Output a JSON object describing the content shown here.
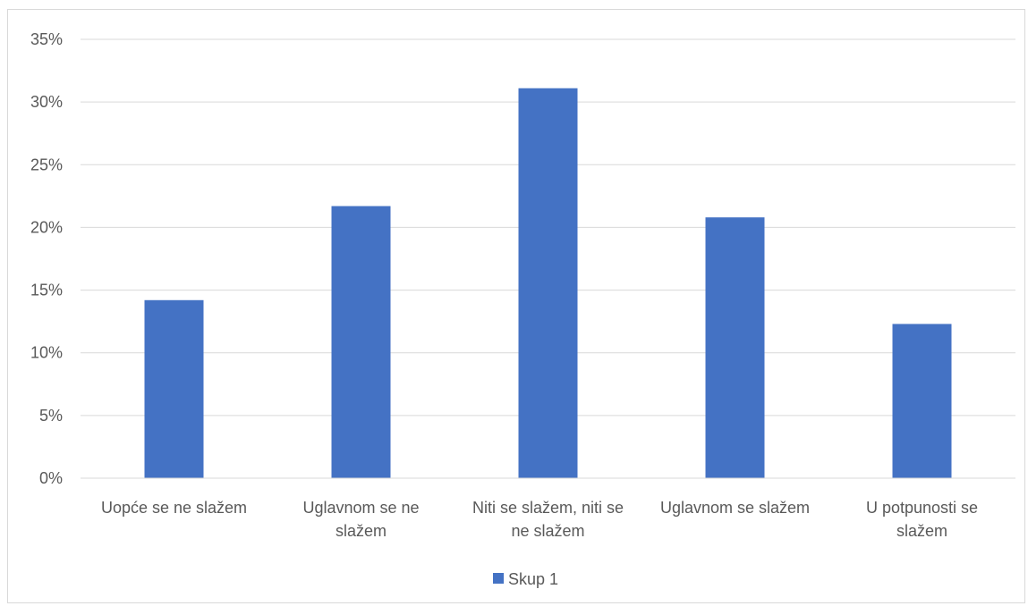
{
  "chart_data": {
    "type": "bar",
    "categories": [
      [
        "Uopće se ne slažem"
      ],
      [
        "Uglavnom se ne",
        "slažem"
      ],
      [
        "Niti se slažem, niti se",
        "ne slažem"
      ],
      [
        "Uglavnom se slažem"
      ],
      [
        "U potpunosti se",
        "slažem"
      ]
    ],
    "series": [
      {
        "name": "Skup 1",
        "values": [
          14.2,
          21.7,
          31.1,
          20.8,
          12.3
        ]
      }
    ],
    "ylim": [
      0,
      35
    ],
    "yticks": [
      "0%",
      "5%",
      "10%",
      "15%",
      "20%",
      "25%",
      "30%",
      "35%"
    ],
    "grid": true,
    "legend_position": "bottom",
    "bar_color": "#4472C4"
  }
}
